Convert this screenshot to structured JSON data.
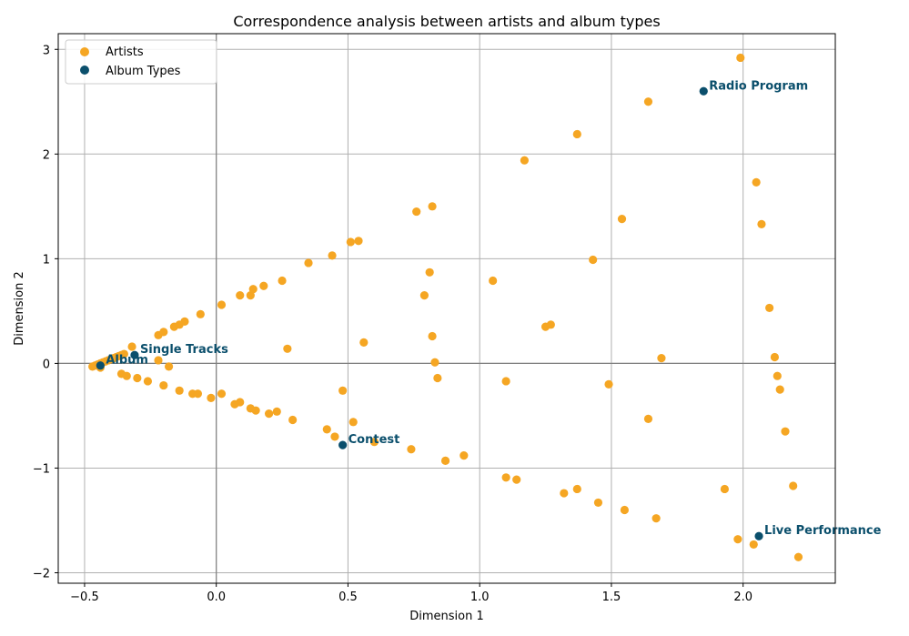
{
  "colors": {
    "artists": "#f5a623",
    "album_types": "#0b4f6c",
    "grid": "#b0b0b0",
    "zero_line": "#808080"
  },
  "chart_data": {
    "type": "scatter",
    "title": "Correspondence analysis between artists and album types",
    "xlabel": "Dimension 1",
    "ylabel": "Dimension 2",
    "xlim": [
      -0.6,
      2.35
    ],
    "ylim": [
      -2.1,
      3.15
    ],
    "xticks": [
      -0.5,
      0.0,
      0.5,
      1.0,
      1.5,
      2.0
    ],
    "xtick_labels": [
      "−0.5",
      "0.0",
      "0.5",
      "1.0",
      "1.5",
      "2.0"
    ],
    "yticks": [
      -2,
      -1,
      0,
      1,
      2,
      3
    ],
    "ytick_labels": [
      "−2",
      "−1",
      "0",
      "1",
      "2",
      "3"
    ],
    "grid": true,
    "legend_position": "top-left",
    "series": [
      {
        "name": "Artists",
        "points": [
          [
            -0.47,
            -0.03
          ],
          [
            -0.46,
            -0.02
          ],
          [
            -0.45,
            -0.01
          ],
          [
            -0.44,
            0.0
          ],
          [
            -0.44,
            -0.04
          ],
          [
            -0.43,
            0.01
          ],
          [
            -0.42,
            0.02
          ],
          [
            -0.41,
            0.03
          ],
          [
            -0.4,
            0.04
          ],
          [
            -0.39,
            0.05
          ],
          [
            -0.38,
            0.06
          ],
          [
            -0.37,
            0.07
          ],
          [
            -0.36,
            0.08
          ],
          [
            -0.35,
            0.09
          ],
          [
            -0.32,
            0.16
          ],
          [
            -0.22,
            0.27
          ],
          [
            -0.2,
            0.3
          ],
          [
            -0.16,
            0.35
          ],
          [
            -0.14,
            0.37
          ],
          [
            -0.12,
            0.4
          ],
          [
            -0.06,
            0.47
          ],
          [
            0.02,
            0.56
          ],
          [
            0.09,
            0.65
          ],
          [
            0.13,
            0.65
          ],
          [
            0.14,
            0.71
          ],
          [
            0.18,
            0.74
          ],
          [
            0.25,
            0.79
          ],
          [
            0.35,
            0.96
          ],
          [
            0.44,
            1.03
          ],
          [
            0.51,
            1.16
          ],
          [
            0.54,
            1.17
          ],
          [
            0.76,
            1.45
          ],
          [
            0.82,
            1.5
          ],
          [
            -0.36,
            -0.1
          ],
          [
            -0.34,
            -0.12
          ],
          [
            -0.3,
            -0.14
          ],
          [
            -0.26,
            -0.17
          ],
          [
            -0.22,
            0.03
          ],
          [
            -0.2,
            -0.21
          ],
          [
            -0.18,
            -0.03
          ],
          [
            -0.14,
            -0.26
          ],
          [
            -0.09,
            -0.29
          ],
          [
            -0.07,
            -0.29
          ],
          [
            -0.02,
            -0.33
          ],
          [
            0.02,
            -0.29
          ],
          [
            0.07,
            -0.39
          ],
          [
            0.09,
            -0.37
          ],
          [
            0.13,
            -0.43
          ],
          [
            0.15,
            -0.45
          ],
          [
            0.2,
            -0.48
          ],
          [
            0.23,
            -0.46
          ],
          [
            0.29,
            -0.54
          ],
          [
            0.42,
            -0.63
          ],
          [
            0.45,
            -0.7
          ],
          [
            0.48,
            -0.26
          ],
          [
            0.52,
            -0.56
          ],
          [
            0.6,
            -0.75
          ],
          [
            0.74,
            -0.82
          ],
          [
            0.87,
            -0.93
          ],
          [
            0.94,
            -0.88
          ],
          [
            0.27,
            0.14
          ],
          [
            0.56,
            0.2
          ],
          [
            0.79,
            0.65
          ],
          [
            0.81,
            0.87
          ],
          [
            0.82,
            0.26
          ],
          [
            0.83,
            0.01
          ],
          [
            0.84,
            -0.14
          ],
          [
            1.05,
            0.79
          ],
          [
            1.1,
            -0.17
          ],
          [
            1.1,
            -1.09
          ],
          [
            1.14,
            -1.11
          ],
          [
            1.17,
            1.94
          ],
          [
            1.25,
            0.35
          ],
          [
            1.27,
            0.37
          ],
          [
            1.32,
            -1.24
          ],
          [
            1.37,
            -1.2
          ],
          [
            1.37,
            2.19
          ],
          [
            1.43,
            0.99
          ],
          [
            1.45,
            -1.33
          ],
          [
            1.49,
            -0.2
          ],
          [
            1.54,
            1.38
          ],
          [
            1.55,
            -1.4
          ],
          [
            1.64,
            2.5
          ],
          [
            1.64,
            -0.53
          ],
          [
            1.67,
            -1.48
          ],
          [
            1.69,
            0.05
          ],
          [
            1.93,
            -1.2
          ],
          [
            1.98,
            -1.68
          ],
          [
            1.99,
            2.92
          ],
          [
            2.04,
            -1.73
          ],
          [
            2.05,
            1.73
          ],
          [
            2.07,
            1.33
          ],
          [
            2.1,
            0.53
          ],
          [
            2.12,
            0.06
          ],
          [
            2.13,
            -0.12
          ],
          [
            2.14,
            -0.25
          ],
          [
            2.16,
            -0.65
          ],
          [
            2.19,
            -1.17
          ],
          [
            2.21,
            -1.85
          ]
        ]
      },
      {
        "name": "Album Types",
        "points": [
          [
            1.85,
            2.6
          ],
          [
            -0.44,
            -0.02
          ],
          [
            -0.31,
            0.08
          ],
          [
            0.48,
            -0.78
          ],
          [
            2.06,
            -1.65
          ]
        ]
      }
    ],
    "annotations": [
      {
        "text": "Radio Program",
        "x": 1.85,
        "y": 2.6
      },
      {
        "text": "Single Tracks",
        "x": -0.31,
        "y": 0.08
      },
      {
        "text": "Album",
        "x": -0.44,
        "y": -0.02
      },
      {
        "text": "Contest",
        "x": 0.48,
        "y": -0.78
      },
      {
        "text": "Live Performance",
        "x": 2.06,
        "y": -1.65
      }
    ]
  }
}
